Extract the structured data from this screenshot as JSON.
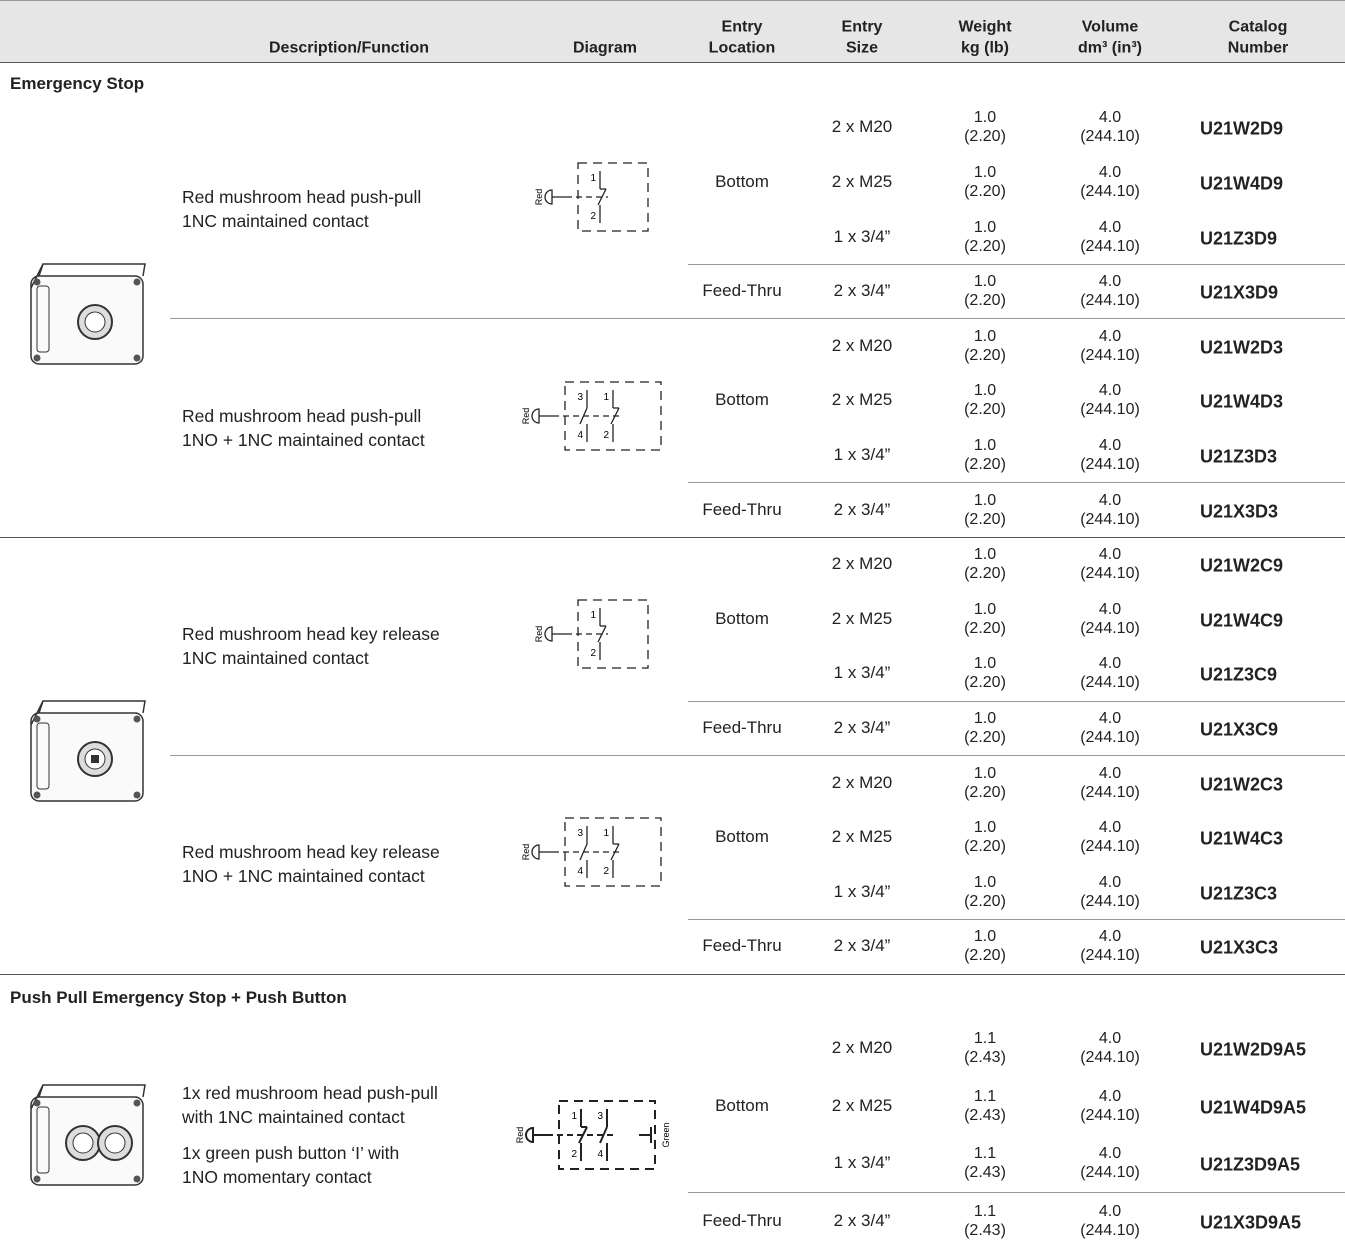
{
  "header": {
    "columns": [
      [
        "Description/Function"
      ],
      [
        "Diagram"
      ],
      [
        "Entry",
        "Location"
      ],
      [
        "Entry",
        "Size"
      ],
      [
        "Weight",
        "kg (lb)"
      ],
      [
        "Volume",
        "dm³ (in³)"
      ],
      [
        "Catalog",
        "Number"
      ]
    ]
  },
  "sections": [
    {
      "title": "Emergency Stop",
      "products": [
        {
          "variants": [
            {
              "description": [
                [
                  "Red mushroom head push-pull",
                  "1NC maintained contact"
                ]
              ],
              "diagram": {
                "left": "Red",
                "contacts": [
                  {
                    "top": "1",
                    "bottom": "2"
                  }
                ]
              },
              "groups": [
                {
                  "location": "Bottom",
                  "rows": [
                    {
                      "size": "2 x M20",
                      "weight": "1.0",
                      "weight_lb": "(2.20)",
                      "volume": "4.0",
                      "volume_in": "(244.10)",
                      "catalog": "U21W2D9"
                    },
                    {
                      "size": "2 x M25",
                      "weight": "1.0",
                      "weight_lb": "(2.20)",
                      "volume": "4.0",
                      "volume_in": "(244.10)",
                      "catalog": "U21W4D9"
                    },
                    {
                      "size": "1 x 3/4”",
                      "weight": "1.0",
                      "weight_lb": "(2.20)",
                      "volume": "4.0",
                      "volume_in": "(244.10)",
                      "catalog": "U21Z3D9"
                    }
                  ]
                },
                {
                  "location": "Feed-Thru",
                  "rows": [
                    {
                      "size": "2 x 3/4”",
                      "weight": "1.0",
                      "weight_lb": "(2.20)",
                      "volume": "4.0",
                      "volume_in": "(244.10)",
                      "catalog": "U21X3D9"
                    }
                  ]
                }
              ]
            },
            {
              "description": [
                [
                  "Red mushroom head push-pull",
                  "1NO + 1NC maintained contact"
                ]
              ],
              "diagram": {
                "left": "Red",
                "contacts": [
                  {
                    "top": "3",
                    "bottom": "4"
                  },
                  {
                    "top": "1",
                    "bottom": "2"
                  }
                ]
              },
              "groups": [
                {
                  "location": "Bottom",
                  "rows": [
                    {
                      "size": "2 x M20",
                      "weight": "1.0",
                      "weight_lb": "(2.20)",
                      "volume": "4.0",
                      "volume_in": "(244.10)",
                      "catalog": "U21W2D3"
                    },
                    {
                      "size": "2 x M25",
                      "weight": "1.0",
                      "weight_lb": "(2.20)",
                      "volume": "4.0",
                      "volume_in": "(244.10)",
                      "catalog": "U21W4D3"
                    },
                    {
                      "size": "1 x 3/4”",
                      "weight": "1.0",
                      "weight_lb": "(2.20)",
                      "volume": "4.0",
                      "volume_in": "(244.10)",
                      "catalog": "U21Z3D3"
                    }
                  ]
                },
                {
                  "location": "Feed-Thru",
                  "rows": [
                    {
                      "size": "2 x 3/4”",
                      "weight": "1.0",
                      "weight_lb": "(2.20)",
                      "volume": "4.0",
                      "volume_in": "(244.10)",
                      "catalog": "U21X3D3"
                    }
                  ]
                }
              ]
            }
          ]
        },
        {
          "variants": [
            {
              "description": [
                [
                  "Red mushroom head key release",
                  "1NC maintained contact"
                ]
              ],
              "diagram": {
                "left": "Red",
                "contacts": [
                  {
                    "top": "1",
                    "bottom": "2"
                  }
                ]
              },
              "groups": [
                {
                  "location": "Bottom",
                  "rows": [
                    {
                      "size": "2 x M20",
                      "weight": "1.0",
                      "weight_lb": "(2.20)",
                      "volume": "4.0",
                      "volume_in": "(244.10)",
                      "catalog": "U21W2C9"
                    },
                    {
                      "size": "2 x M25",
                      "weight": "1.0",
                      "weight_lb": "(2.20)",
                      "volume": "4.0",
                      "volume_in": "(244.10)",
                      "catalog": "U21W4C9"
                    },
                    {
                      "size": "1 x 3/4”",
                      "weight": "1.0",
                      "weight_lb": "(2.20)",
                      "volume": "4.0",
                      "volume_in": "(244.10)",
                      "catalog": "U21Z3C9"
                    }
                  ]
                },
                {
                  "location": "Feed-Thru",
                  "rows": [
                    {
                      "size": "2 x 3/4”",
                      "weight": "1.0",
                      "weight_lb": "(2.20)",
                      "volume": "4.0",
                      "volume_in": "(244.10)",
                      "catalog": "U21X3C9"
                    }
                  ]
                }
              ]
            },
            {
              "description": [
                [
                  "Red mushroom head key release",
                  "1NO + 1NC maintained contact"
                ]
              ],
              "diagram": {
                "left": "Red",
                "contacts": [
                  {
                    "top": "3",
                    "bottom": "4"
                  },
                  {
                    "top": "1",
                    "bottom": "2"
                  }
                ]
              },
              "groups": [
                {
                  "location": "Bottom",
                  "rows": [
                    {
                      "size": "2 x M20",
                      "weight": "1.0",
                      "weight_lb": "(2.20)",
                      "volume": "4.0",
                      "volume_in": "(244.10)",
                      "catalog": "U21W2C3"
                    },
                    {
                      "size": "2 x M25",
                      "weight": "1.0",
                      "weight_lb": "(2.20)",
                      "volume": "4.0",
                      "volume_in": "(244.10)",
                      "catalog": "U21W4C3"
                    },
                    {
                      "size": "1 x 3/4”",
                      "weight": "1.0",
                      "weight_lb": "(2.20)",
                      "volume": "4.0",
                      "volume_in": "(244.10)",
                      "catalog": "U21Z3C3"
                    }
                  ]
                },
                {
                  "location": "Feed-Thru",
                  "rows": [
                    {
                      "size": "2 x 3/4”",
                      "weight": "1.0",
                      "weight_lb": "(2.20)",
                      "volume": "4.0",
                      "volume_in": "(244.10)",
                      "catalog": "U21X3C3"
                    }
                  ]
                }
              ]
            }
          ]
        }
      ]
    },
    {
      "title": "Push Pull Emergency Stop + Push Button",
      "products": [
        {
          "variants": [
            {
              "description": [
                [
                  "1x red mushroom head push-pull",
                  "with 1NC maintained contact"
                ],
                [
                  "1x green push button ‘I’ with",
                  "1NO momentary contact"
                ]
              ],
              "diagram": {
                "left": "Red",
                "right": "Green",
                "contacts": [
                  {
                    "top": "1",
                    "bottom": "2"
                  },
                  {
                    "top": "3",
                    "bottom": "4"
                  }
                ]
              },
              "groups": [
                {
                  "location": "Bottom",
                  "rows": [
                    {
                      "size": "2 x M20",
                      "weight": "1.1",
                      "weight_lb": "(2.43)",
                      "volume": "4.0",
                      "volume_in": "(244.10)",
                      "catalog": "U21W2D9A5"
                    },
                    {
                      "size": "2 x M25",
                      "weight": "1.1",
                      "weight_lb": "(2.43)",
                      "volume": "4.0",
                      "volume_in": "(244.10)",
                      "catalog": "U21W4D9A5"
                    },
                    {
                      "size": "1 x 3/4”",
                      "weight": "1.1",
                      "weight_lb": "(2.43)",
                      "volume": "4.0",
                      "volume_in": "(244.10)",
                      "catalog": "U21Z3D9A5"
                    }
                  ]
                },
                {
                  "location": "Feed-Thru",
                  "rows": [
                    {
                      "size": "2 x 3/4”",
                      "weight": "1.1",
                      "weight_lb": "(2.43)",
                      "volume": "4.0",
                      "volume_in": "(244.10)",
                      "catalog": "U21X3D9A5"
                    }
                  ]
                }
              ]
            }
          ]
        }
      ]
    }
  ]
}
